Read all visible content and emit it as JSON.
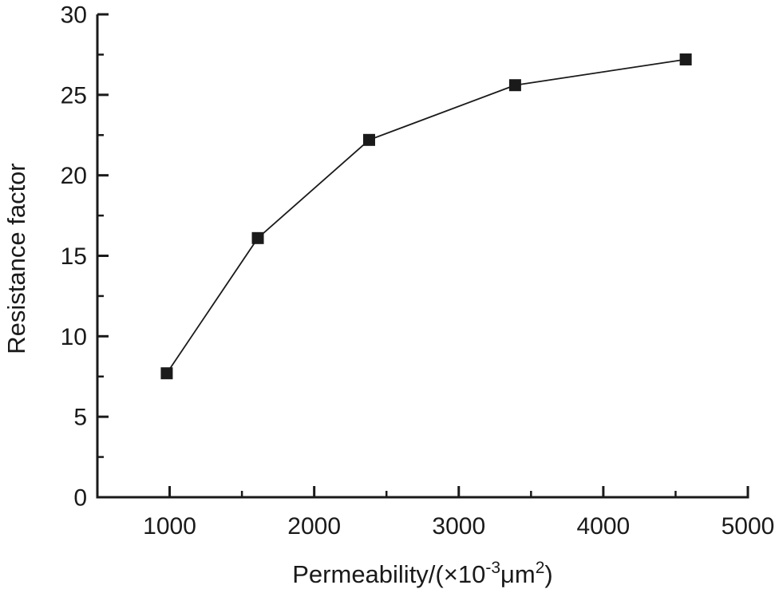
{
  "figure": {
    "background_color": "#ffffff",
    "ink_color": "#1a1a1a"
  },
  "chart_data": {
    "type": "line",
    "title": "",
    "xlabel": "Permeability/(×10⁻³μm²)",
    "xlabel_parts": [
      {
        "text": "Permeability/(×10",
        "sup": false
      },
      {
        "text": "-3",
        "sup": true
      },
      {
        "text": "μm",
        "sup": false
      },
      {
        "text": "2",
        "sup": true
      },
      {
        "text": ")",
        "sup": false
      }
    ],
    "ylabel": "Resistance factor",
    "x": [
      980,
      1610,
      2380,
      3390,
      4570
    ],
    "series": [
      {
        "name": "Resistance factor",
        "values": [
          7.7,
          16.1,
          22.2,
          25.6,
          27.2
        ]
      }
    ],
    "xlim": [
      500,
      5000
    ],
    "ylim": [
      0,
      30
    ],
    "x_major_ticks": [
      1000,
      2000,
      3000,
      4000,
      5000
    ],
    "x_minor_step": 500,
    "y_major_ticks": [
      0,
      5,
      10,
      15,
      20,
      25,
      30
    ],
    "y_minor_step": 2.5,
    "grid": false,
    "legend_position": "none",
    "marker": "filled-square",
    "line_color": "#1a1a1a",
    "marker_color": "#1a1a1a",
    "background_color": "#ffffff"
  }
}
